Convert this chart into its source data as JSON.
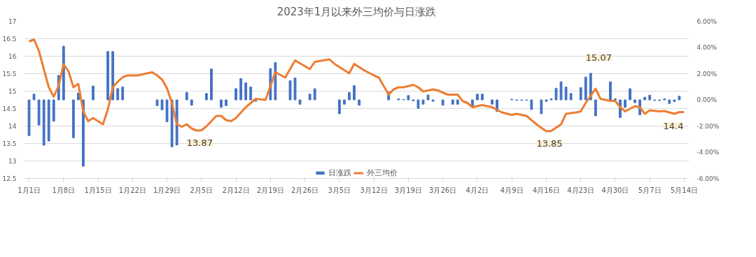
{
  "chart_data": {
    "type": "bar",
    "title": "2023年1月以来外三均价与日涨跌",
    "xlim": [
      "2022-12-31",
      "2023-05-15"
    ],
    "xticks": [
      {
        "value": "2023-01-01",
        "label": "1月1日"
      },
      {
        "value": "2023-01-08",
        "label": "1月8日"
      },
      {
        "value": "2023-01-15",
        "label": "1月15日"
      },
      {
        "value": "2023-01-22",
        "label": "1月22日"
      },
      {
        "value": "2023-01-29",
        "label": "1月29日"
      },
      {
        "value": "2023-02-05",
        "label": "2月5日"
      },
      {
        "value": "2023-02-12",
        "label": "2月12日"
      },
      {
        "value": "2023-02-19",
        "label": "2月19日"
      },
      {
        "value": "2023-02-26",
        "label": "2月26日"
      },
      {
        "value": "2023-03-05",
        "label": "3月5日"
      },
      {
        "value": "2023-03-12",
        "label": "3月12日"
      },
      {
        "value": "2023-03-19",
        "label": "3月19日"
      },
      {
        "value": "2023-03-26",
        "label": "3月26日"
      },
      {
        "value": "2023-04-02",
        "label": "4月2日"
      },
      {
        "value": "2023-04-09",
        "label": "4月9日"
      },
      {
        "value": "2023-04-16",
        "label": "4月16日"
      },
      {
        "value": "2023-04-23",
        "label": "4月23日"
      },
      {
        "value": "2023-04-30",
        "label": "4月30日"
      },
      {
        "value": "2023-05-07",
        "label": "5月7日"
      },
      {
        "value": "2023-05-14",
        "label": "5月14日"
      }
    ],
    "ylim": [
      12.5,
      17
    ],
    "yticks": [
      12.5,
      13,
      13.5,
      14,
      14.5,
      15,
      15.5,
      16,
      16.5,
      17
    ],
    "y2lim": [
      -6,
      6
    ],
    "y2ticks": [
      {
        "value": -6,
        "label": "-6.00%"
      },
      {
        "value": -4,
        "label": "-4.00%"
      },
      {
        "value": -2,
        "label": "-2.00%"
      },
      {
        "value": 0,
        "label": "0.00%"
      },
      {
        "value": 2,
        "label": "2.00%"
      },
      {
        "value": 4,
        "label": "4.00%"
      },
      {
        "value": 6,
        "label": "6.00%"
      }
    ],
    "grid": "y",
    "legend": "bottom",
    "series": [
      {
        "name": "日涨跌",
        "axis": "y2",
        "color": "#4472c4",
        "x": [
          "2023-01-01",
          "2023-01-02",
          "2023-01-03",
          "2023-01-04",
          "2023-01-05",
          "2023-01-06",
          "2023-01-07",
          "2023-01-08",
          "2023-01-10",
          "2023-01-11",
          "2023-01-12",
          "2023-01-14",
          "2023-01-17",
          "2023-01-18",
          "2023-01-19",
          "2023-01-20",
          "2023-01-27",
          "2023-01-28",
          "2023-01-29",
          "2023-01-30",
          "2023-01-31",
          "2023-02-02",
          "2023-02-03",
          "2023-02-06",
          "2023-02-07",
          "2023-02-09",
          "2023-02-10",
          "2023-02-12",
          "2023-02-13",
          "2023-02-14",
          "2023-02-15",
          "2023-02-16",
          "2023-02-19",
          "2023-02-20",
          "2023-02-23",
          "2023-02-24",
          "2023-02-25",
          "2023-02-27",
          "2023-02-28",
          "2023-03-05",
          "2023-03-06",
          "2023-03-07",
          "2023-03-08",
          "2023-03-09",
          "2023-03-15",
          "2023-03-17",
          "2023-03-18",
          "2023-03-19",
          "2023-03-20",
          "2023-03-21",
          "2023-03-22",
          "2023-03-23",
          "2023-03-24",
          "2023-03-26",
          "2023-03-28",
          "2023-03-29",
          "2023-04-01",
          "2023-04-02",
          "2023-04-03",
          "2023-04-05",
          "2023-04-06",
          "2023-04-09",
          "2023-04-10",
          "2023-04-11",
          "2023-04-12",
          "2023-04-13",
          "2023-04-15",
          "2023-04-16",
          "2023-04-17",
          "2023-04-18",
          "2023-04-19",
          "2023-04-20",
          "2023-04-21",
          "2023-04-23",
          "2023-04-24",
          "2023-04-25",
          "2023-04-26",
          "2023-04-29",
          "2023-04-30",
          "2023-05-01",
          "2023-05-02",
          "2023-05-03",
          "2023-05-04",
          "2023-05-05",
          "2023-05-06",
          "2023-05-07",
          "2023-05-08",
          "2023-05-09",
          "2023-05-10",
          "2023-05-11",
          "2023-05-12",
          "2023-05-13"
        ],
        "values": [
          -2.73,
          0.44,
          -1.92,
          -3.46,
          -3.14,
          -1.63,
          1.87,
          4.1,
          -2.89,
          0.52,
          -5.07,
          1.06,
          3.69,
          3.69,
          0.86,
          0.98,
          -0.44,
          -0.76,
          -1.67,
          -3.58,
          -3.45,
          0.57,
          -0.41,
          0.49,
          2.36,
          -0.57,
          -0.44,
          0.86,
          1.63,
          1.3,
          0.98,
          -0.11,
          2.39,
          2.85,
          1.46,
          1.67,
          -0.33,
          0.44,
          0.85,
          -1.06,
          -0.33,
          0.57,
          1.09,
          -0.41,
          0.6,
          0.08,
          0.03,
          0.33,
          -0.08,
          -0.65,
          -0.33,
          0.37,
          -0.11,
          -0.41,
          -0.33,
          -0.33,
          -0.54,
          0.44,
          0.44,
          -0.33,
          -0.89,
          0.05,
          -0.03,
          -0.03,
          -0.03,
          -0.73,
          -1.06,
          -0.11,
          0.08,
          0.89,
          1.38,
          0.98,
          0.49,
          0.93,
          1.74,
          2.03,
          -1.22,
          1.38,
          0.08,
          -1.35,
          -0.57,
          0.85,
          -0.21,
          -1.14,
          0.2,
          0.36,
          -0.05,
          -0.05,
          0.08,
          -0.28,
          -0.13,
          0.28
        ]
      },
      {
        "name": "外三均价",
        "type": "line",
        "color": "#ed7d31",
        "x": [
          "2023-01-01",
          "2023-01-02",
          "2023-01-03",
          "2023-01-04",
          "2023-01-05",
          "2023-01-06",
          "2023-01-07",
          "2023-01-08",
          "2023-01-09",
          "2023-01-10",
          "2023-01-11",
          "2023-01-12",
          "2023-01-13",
          "2023-01-14",
          "2023-01-15",
          "2023-01-16",
          "2023-01-17",
          "2023-01-18",
          "2023-01-19",
          "2023-01-20",
          "2023-01-21",
          "2023-01-23",
          "2023-01-25",
          "2023-01-26",
          "2023-01-27",
          "2023-01-28",
          "2023-01-29",
          "2023-01-30",
          "2023-01-31",
          "2023-02-01",
          "2023-02-02",
          "2023-02-03",
          "2023-02-04",
          "2023-02-05",
          "2023-02-06",
          "2023-02-07",
          "2023-02-08",
          "2023-02-09",
          "2023-02-10",
          "2023-02-11",
          "2023-02-12",
          "2023-02-14",
          "2023-02-16",
          "2023-02-18",
          "2023-02-20",
          "2023-02-22",
          "2023-02-24",
          "2023-02-27",
          "2023-02-28",
          "2023-03-03",
          "2023-03-04",
          "2023-03-07",
          "2023-03-08",
          "2023-03-10",
          "2023-03-12",
          "2023-03-13",
          "2023-03-15",
          "2023-03-16",
          "2023-03-17",
          "2023-03-18",
          "2023-03-20",
          "2023-03-21",
          "2023-03-22",
          "2023-03-24",
          "2023-03-25",
          "2023-03-27",
          "2023-03-29",
          "2023-03-30",
          "2023-03-31",
          "2023-04-01",
          "2023-04-03",
          "2023-04-05",
          "2023-04-07",
          "2023-04-09",
          "2023-04-10",
          "2023-04-12",
          "2023-04-14",
          "2023-04-16",
          "2023-04-17",
          "2023-04-19",
          "2023-04-20",
          "2023-04-22",
          "2023-04-23",
          "2023-04-24",
          "2023-04-26",
          "2023-04-27",
          "2023-04-29",
          "2023-04-30",
          "2023-05-01",
          "2023-05-02",
          "2023-05-04",
          "2023-05-05",
          "2023-05-06",
          "2023-05-07",
          "2023-05-09",
          "2023-05-10",
          "2023-05-12",
          "2023-05-13",
          "2023-05-14"
        ],
        "values": [
          16.42,
          16.48,
          16.15,
          15.63,
          15.11,
          14.84,
          15.15,
          15.77,
          15.57,
          15.11,
          15.21,
          14.42,
          14.14,
          14.23,
          14.14,
          14.05,
          14.48,
          15.11,
          15.27,
          15.4,
          15.45,
          15.45,
          15.51,
          15.54,
          15.45,
          15.33,
          15.08,
          14.66,
          14.05,
          13.98,
          14.05,
          13.93,
          13.87,
          13.88,
          13.99,
          14.14,
          14.29,
          14.29,
          14.17,
          14.14,
          14.23,
          14.54,
          14.78,
          14.75,
          15.54,
          15.39,
          15.88,
          15.63,
          15.84,
          15.91,
          15.78,
          15.51,
          15.78,
          15.6,
          15.45,
          15.39,
          14.9,
          15.05,
          15.11,
          15.11,
          15.18,
          15.11,
          14.99,
          15.05,
          15.02,
          14.9,
          14.9,
          14.72,
          14.66,
          14.54,
          14.6,
          14.54,
          14.39,
          14.32,
          14.35,
          14.29,
          14.05,
          13.85,
          13.86,
          14.05,
          14.35,
          14.39,
          14.42,
          14.66,
          15.07,
          14.78,
          14.72,
          14.72,
          14.54,
          14.42,
          14.57,
          14.54,
          14.35,
          14.45,
          14.42,
          14.43,
          14.35,
          14.4,
          14.4
        ]
      }
    ],
    "annotations": [
      {
        "text": "13.87",
        "x": "2023-02-04",
        "y": 13.87
      },
      {
        "text": "13.85",
        "x": "2023-04-16",
        "y": 13.85
      },
      {
        "text": "15.07",
        "x": "2023-04-26",
        "y": 15.07
      },
      {
        "text": "14.4",
        "x": "2023-05-14",
        "y": 14.4
      }
    ]
  }
}
